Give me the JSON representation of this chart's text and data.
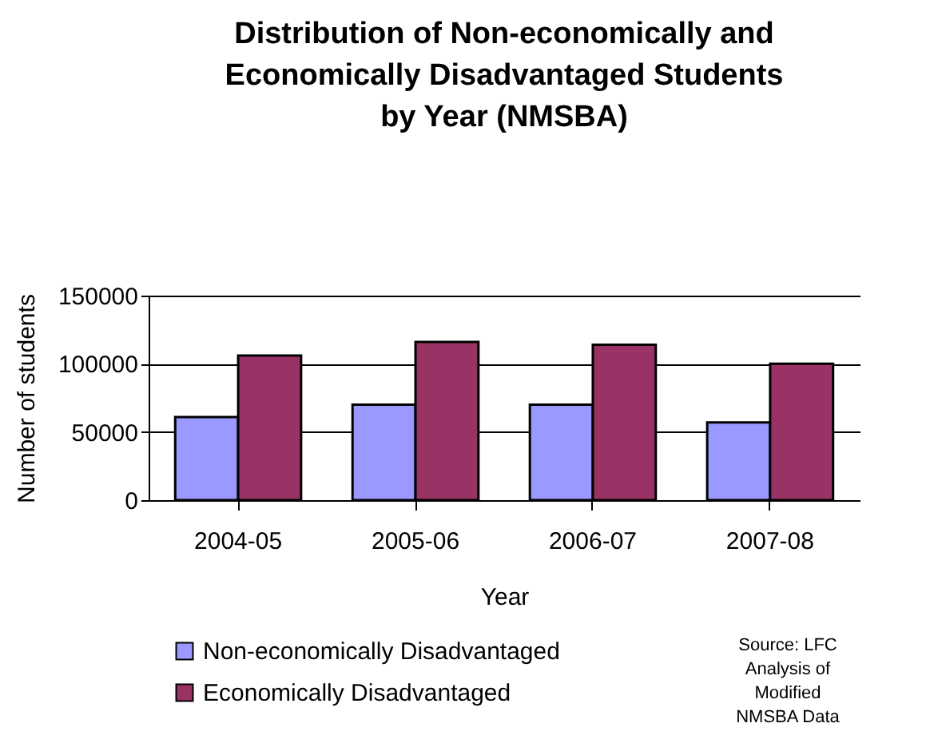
{
  "chart_data": {
    "type": "bar",
    "title": [
      "Distribution of Non-economically and",
      "Economically Disadvantaged Students",
      "by Year (NMSBA)"
    ],
    "xlabel": "Year",
    "ylabel": "Number of students",
    "categories": [
      "2004-05",
      "2005-06",
      "2006-07",
      "2007-08"
    ],
    "series": [
      {
        "name": "Non-economically Disadvantaged",
        "color": "#9999ff",
        "values": [
          61000,
          70000,
          70000,
          57000
        ]
      },
      {
        "name": "Economically Disadvantaged",
        "color": "#993366",
        "values": [
          106000,
          116000,
          114000,
          100000
        ]
      }
    ],
    "ylim": [
      0,
      150000
    ],
    "yticks": [
      0,
      50000,
      100000,
      150000
    ],
    "grid": "y",
    "legend": "bottom",
    "annotations": [
      "Source: LFC Analysis of Modified NMSBA Data"
    ]
  }
}
